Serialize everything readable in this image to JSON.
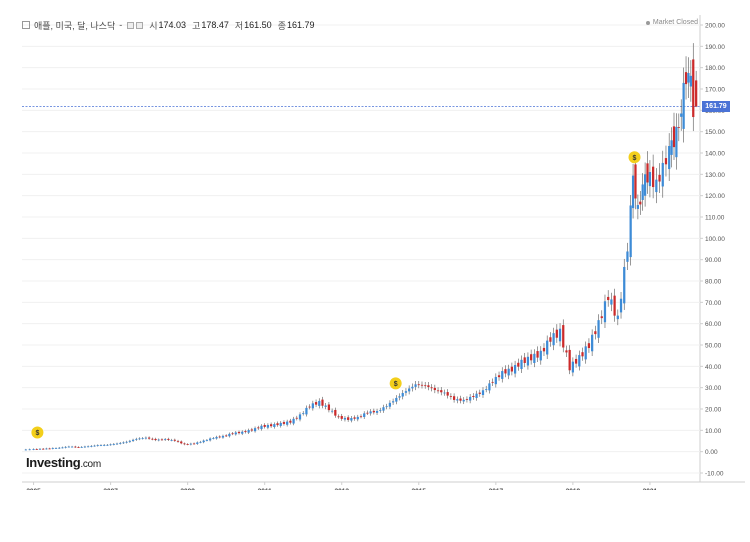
{
  "header": {
    "title": "애플, 미국, 달, 나스닥",
    "separator": "-",
    "open_label": "시",
    "open_value": "174.03",
    "high_label": "고",
    "high_value": "178.47",
    "low_label": "저",
    "low_value": "161.50",
    "close_label": "종",
    "close_value": "161.79"
  },
  "status": "Market Closed",
  "logo": {
    "main": "Investing",
    "suffix": ".com"
  },
  "current_price": "161.79",
  "dividend_marker": "$",
  "colors": {
    "up": "#3d8bd6",
    "down": "#cc2a2a",
    "price_line": "#4b73d6",
    "grid": "#f0f0f0",
    "marker": "#f3cf1b"
  },
  "chart_data": {
    "type": "candlestick",
    "y_axis_position": "right",
    "ylim": [
      -10,
      200
    ],
    "ytick_labels": [
      "200.00",
      "190.00",
      "180.00",
      "170.00",
      "160.00",
      "150.00",
      "140.00",
      "130.00",
      "120.00",
      "110.00",
      "100.00",
      "90.00",
      "80.00",
      "70.00",
      "60.00",
      "50.00",
      "40.00",
      "30.00",
      "20.00",
      "10.00",
      "0.00",
      "-10.00"
    ],
    "x_tick_labels": [
      "2005",
      "2007",
      "2009",
      "2011",
      "2013",
      "2015",
      "2017",
      "2019",
      "2021"
    ],
    "xlim": [
      2004.7,
      2022.3
    ],
    "current_price": 161.79,
    "dividend_markers": [
      {
        "date": 2005.1,
        "value": 9
      },
      {
        "date": 2014.4,
        "value": 32
      },
      {
        "date": 2020.6,
        "value": 138
      }
    ],
    "series": [
      {
        "points": [
          [
            2004.8,
            0.9
          ],
          [
            2005.0,
            1.1
          ],
          [
            2005.25,
            1.3
          ],
          [
            2005.5,
            1.5
          ],
          [
            2005.75,
            1.8
          ],
          [
            2006.0,
            2.4
          ],
          [
            2006.25,
            2.1
          ],
          [
            2006.5,
            2.5
          ],
          [
            2006.75,
            3.0
          ],
          [
            2007.0,
            3.2
          ],
          [
            2007.25,
            3.8
          ],
          [
            2007.5,
            4.6
          ],
          [
            2007.75,
            6.0
          ],
          [
            2008.0,
            6.5
          ],
          [
            2008.25,
            5.5
          ],
          [
            2008.5,
            5.8
          ],
          [
            2008.75,
            5.2
          ],
          [
            2009.0,
            3.4
          ],
          [
            2009.25,
            3.8
          ],
          [
            2009.5,
            5.1
          ],
          [
            2009.75,
            6.5
          ],
          [
            2010.0,
            7.2
          ],
          [
            2010.25,
            8.6
          ],
          [
            2010.5,
            9.1
          ],
          [
            2010.75,
            10.2
          ],
          [
            2011.0,
            11.8
          ],
          [
            2011.25,
            12.3
          ],
          [
            2011.5,
            13.1
          ],
          [
            2011.75,
            14.0
          ],
          [
            2012.0,
            17.0
          ],
          [
            2012.25,
            21.5
          ],
          [
            2012.5,
            23.2
          ],
          [
            2012.75,
            20.0
          ],
          [
            2013.0,
            16.0
          ],
          [
            2013.25,
            15.2
          ],
          [
            2013.5,
            16.0
          ],
          [
            2013.75,
            18.5
          ],
          [
            2014.0,
            18.8
          ],
          [
            2014.25,
            21.5
          ],
          [
            2014.5,
            25.0
          ],
          [
            2014.75,
            28.5
          ],
          [
            2015.0,
            31.5
          ],
          [
            2015.25,
            31.0
          ],
          [
            2015.5,
            29.0
          ],
          [
            2015.75,
            27.5
          ],
          [
            2016.0,
            24.5
          ],
          [
            2016.25,
            24.0
          ],
          [
            2016.5,
            26.0
          ],
          [
            2016.75,
            28.3
          ],
          [
            2017.0,
            33.0
          ],
          [
            2017.25,
            37.0
          ],
          [
            2017.5,
            38.5
          ],
          [
            2017.75,
            42.0
          ],
          [
            2018.0,
            44.0
          ],
          [
            2018.25,
            46.0
          ],
          [
            2018.5,
            53.0
          ],
          [
            2018.75,
            56.0
          ],
          [
            2019.0,
            39.5
          ],
          [
            2019.25,
            44.0
          ],
          [
            2019.5,
            50.0
          ],
          [
            2019.75,
            60.0
          ],
          [
            2020.0,
            73.0
          ],
          [
            2020.25,
            62.0
          ],
          [
            2020.5,
            96.0
          ],
          [
            2020.625,
            130.0
          ],
          [
            2020.75,
            112.0
          ],
          [
            2020.875,
            125.0
          ],
          [
            2021.0,
            130.0
          ],
          [
            2021.25,
            125.0
          ],
          [
            2021.5,
            137.0
          ],
          [
            2021.625,
            145.0
          ],
          [
            2021.75,
            148.0
          ],
          [
            2021.875,
            160.0
          ],
          [
            2022.0,
            177.0
          ],
          [
            2022.125,
            174.0
          ],
          [
            2022.2,
            161.79
          ]
        ]
      }
    ]
  }
}
